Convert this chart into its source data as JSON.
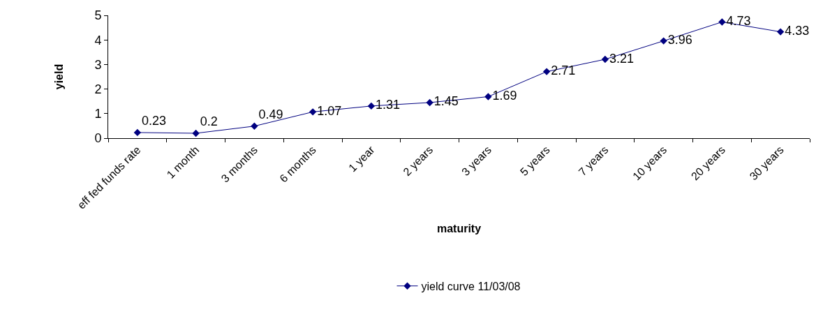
{
  "chart_data": {
    "type": "line",
    "xlabel": "maturity",
    "ylabel": "yield",
    "categories": [
      "eff fed funds rate",
      "1 month",
      "3 months",
      "6 months",
      "1 year",
      "2 years",
      "3 years",
      "5 years",
      "7 years",
      "10 years",
      "20 years",
      "30 years"
    ],
    "series": [
      {
        "name": "yield curve 11/03/08",
        "color": "#000080",
        "values": [
          0.23,
          0.2,
          0.49,
          1.07,
          1.31,
          1.45,
          1.69,
          2.71,
          3.21,
          3.96,
          4.73,
          4.33
        ]
      }
    ],
    "ylim": [
      0,
      5
    ],
    "yticks": [
      0,
      1,
      2,
      3,
      4,
      5
    ],
    "legend": "bottom",
    "marker": "diamond",
    "line_style": "solid",
    "data_labels": true
  }
}
